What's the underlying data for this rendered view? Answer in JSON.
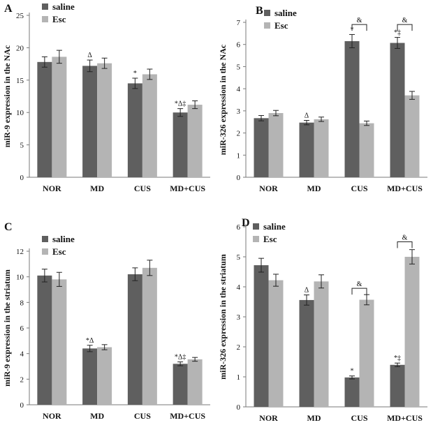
{
  "colors": {
    "saline": "#5f5f5f",
    "esc": "#b4b4b4",
    "axis": "#7a7a7a",
    "ink": "#111111"
  },
  "chart_data": [
    {
      "panel": "A",
      "type": "bar",
      "title": "",
      "ylabel": "miR-9 expression in the NAc",
      "xlabel": "",
      "ylim": [
        0,
        25
      ],
      "yticks": [
        0,
        5,
        10,
        15,
        20,
        25
      ],
      "legend": "top-left",
      "categories": [
        "NOR",
        "MD",
        "CUS",
        "MD+CUS"
      ],
      "series": [
        {
          "name": "saline",
          "values": [
            17.8,
            17.2,
            14.5,
            10.0
          ],
          "errors": [
            0.8,
            0.9,
            0.8,
            0.6
          ]
        },
        {
          "name": "Esc",
          "values": [
            18.6,
            17.6,
            15.9,
            11.2
          ],
          "errors": [
            1.0,
            0.8,
            0.8,
            0.6
          ]
        }
      ],
      "annotations": [
        {
          "category": 1,
          "series": 0,
          "text": "Δ"
        },
        {
          "category": 2,
          "series": 0,
          "text": "*"
        },
        {
          "category": 3,
          "series": 0,
          "text": "*Δ‡"
        }
      ],
      "brackets": []
    },
    {
      "panel": "B",
      "type": "bar",
      "title": "",
      "ylabel": "miR-326 expression in the NAc",
      "xlabel": "",
      "ylim": [
        0,
        7
      ],
      "yticks": [
        0,
        1,
        2,
        3,
        4,
        5,
        6,
        7
      ],
      "legend": "top-left",
      "categories": [
        "NOR",
        "MD",
        "CUS",
        "MD+CUS"
      ],
      "series": [
        {
          "name": "saline",
          "values": [
            2.67,
            2.47,
            6.15,
            6.07
          ],
          "errors": [
            0.12,
            0.1,
            0.3,
            0.25
          ]
        },
        {
          "name": "Esc",
          "values": [
            2.9,
            2.62,
            2.44,
            3.7
          ],
          "errors": [
            0.12,
            0.1,
            0.1,
            0.18
          ]
        }
      ],
      "annotations": [
        {
          "category": 1,
          "series": 0,
          "text": "Δ"
        },
        {
          "category": 2,
          "series": 0,
          "text": "*"
        },
        {
          "category": 3,
          "series": 0,
          "text": "*‡"
        }
      ],
      "brackets": [
        {
          "category": 2,
          "y": 6.9,
          "text": "&"
        },
        {
          "category": 3,
          "y": 6.9,
          "text": "&"
        }
      ]
    },
    {
      "panel": "C",
      "type": "bar",
      "title": "",
      "ylabel": "miR-9 expression in the striatum",
      "xlabel": "",
      "ylim": [
        0,
        12
      ],
      "yticks": [
        0,
        2,
        4,
        6,
        8,
        10,
        12
      ],
      "legend": "top-left",
      "categories": [
        "NOR",
        "MD",
        "CUS",
        "MD+CUS"
      ],
      "series": [
        {
          "name": "saline",
          "values": [
            10.1,
            4.4,
            10.2,
            3.2
          ],
          "errors": [
            0.5,
            0.25,
            0.5,
            0.15
          ]
        },
        {
          "name": "Esc",
          "values": [
            9.8,
            4.5,
            10.7,
            3.55
          ],
          "errors": [
            0.55,
            0.2,
            0.6,
            0.15
          ]
        }
      ],
      "annotations": [
        {
          "category": 1,
          "series": 0,
          "text": "*Δ"
        },
        {
          "category": 3,
          "series": 0,
          "text": "*Δ‡"
        }
      ],
      "brackets": []
    },
    {
      "panel": "D",
      "type": "bar",
      "title": "",
      "ylabel": "miR-326 expression in the striatum",
      "xlabel": "",
      "ylim": [
        0,
        6
      ],
      "yticks": [
        0,
        1,
        2,
        3,
        4,
        5,
        6
      ],
      "legend": "top-left",
      "categories": [
        "NOR",
        "MD",
        "CUS",
        "MD+CUS"
      ],
      "series": [
        {
          "name": "saline",
          "values": [
            4.72,
            3.56,
            0.98,
            1.4
          ],
          "errors": [
            0.23,
            0.17,
            0.05,
            0.06
          ]
        },
        {
          "name": "Esc",
          "values": [
            4.22,
            4.18,
            3.57,
            5.0
          ],
          "errors": [
            0.2,
            0.22,
            0.17,
            0.24
          ]
        }
      ],
      "annotations": [
        {
          "category": 1,
          "series": 0,
          "text": "Δ"
        },
        {
          "category": 2,
          "series": 0,
          "text": "*"
        },
        {
          "category": 3,
          "series": 0,
          "text": "*‡"
        }
      ],
      "brackets": [
        {
          "category": 2,
          "y": 3.95,
          "text": "&"
        },
        {
          "category": 3,
          "y": 5.5,
          "text": "&"
        }
      ]
    }
  ]
}
